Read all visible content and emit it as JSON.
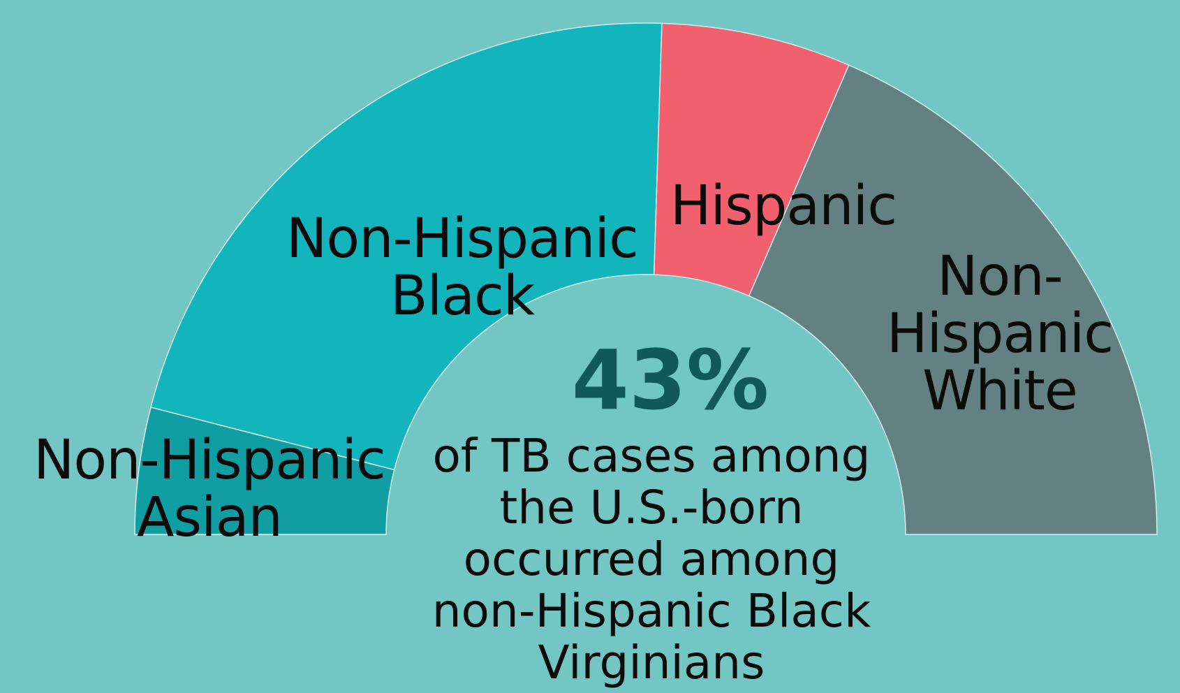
{
  "chart_data": {
    "type": "pie",
    "style": "half-donut",
    "series": [
      {
        "label_lines": [
          "Non-Hispanic",
          "Asian"
        ],
        "value": 8,
        "color": "#109ea2"
      },
      {
        "label_lines": [
          "Non-Hispanic",
          "Black"
        ],
        "value": 43,
        "color": "#12b5bc"
      },
      {
        "label_lines": [
          "Hispanic"
        ],
        "value": 12,
        "color": "#f0606e"
      },
      {
        "label_lines": [
          "Non-",
          "Hispanic",
          "White"
        ],
        "value": 37,
        "color": "#638083"
      }
    ],
    "highlight": {
      "value": "43%",
      "caption_lines": [
        "of TB cases among",
        "the U.S.-born",
        "occurred among",
        "non-Hispanic Black",
        "Virginians"
      ]
    }
  },
  "colors": {
    "background": "#72c6c3",
    "highlight_text": "#0f5a58",
    "label_text": "#0b0b0b"
  }
}
